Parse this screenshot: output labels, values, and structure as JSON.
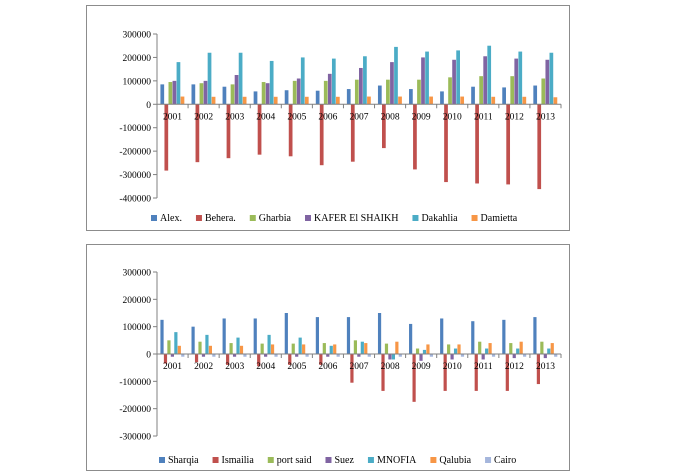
{
  "chart_data": [
    {
      "type": "bar",
      "title": "",
      "xlabel": "",
      "ylabel": "",
      "ylim": [
        -400000,
        300000
      ],
      "yticks": [
        300000,
        200000,
        100000,
        0,
        -100000,
        -200000,
        -300000,
        -400000
      ],
      "grid": false,
      "legend": "bottom",
      "categories": [
        "2001",
        "2002",
        "2003",
        "2004",
        "2005",
        "2006",
        "2007",
        "2008",
        "2009",
        "2010",
        "2011",
        "2012",
        "2013"
      ],
      "series": [
        {
          "name": "Alex.",
          "color": "#4f81bd",
          "values": [
            85000,
            85000,
            75000,
            55000,
            60000,
            58000,
            65000,
            80000,
            65000,
            55000,
            75000,
            72000,
            80000
          ]
        },
        {
          "name": "Behera.",
          "color": "#c0504d",
          "values": [
            -283000,
            -247000,
            -230000,
            -215000,
            -222000,
            -260000,
            -245000,
            -187000,
            -278000,
            -332000,
            -338000,
            -342000,
            -362000
          ]
        },
        {
          "name": "Gharbia",
          "color": "#9bbb59",
          "values": [
            95000,
            90000,
            85000,
            95000,
            100000,
            100000,
            105000,
            105000,
            105000,
            115000,
            120000,
            120000,
            110000
          ]
        },
        {
          "name": "KAFER  El SHAIKH",
          "color": "#8064a2",
          "values": [
            100000,
            100000,
            125000,
            90000,
            110000,
            130000,
            155000,
            180000,
            200000,
            190000,
            205000,
            195000,
            190000
          ]
        },
        {
          "name": "Dakahlia",
          "color": "#4bacc6",
          "values": [
            180000,
            220000,
            220000,
            185000,
            200000,
            195000,
            205000,
            245000,
            225000,
            230000,
            250000,
            225000,
            220000
          ]
        },
        {
          "name": "Damietta",
          "color": "#f79646",
          "values": [
            33000,
            32000,
            32000,
            32000,
            32000,
            32000,
            33000,
            33000,
            33000,
            33000,
            32000,
            32000,
            30000
          ]
        }
      ]
    },
    {
      "type": "bar",
      "title": "",
      "xlabel": "",
      "ylabel": "",
      "ylim": [
        -300000,
        300000
      ],
      "yticks": [
        300000,
        200000,
        100000,
        0,
        -100000,
        -200000,
        -300000
      ],
      "grid": false,
      "legend": "bottom",
      "categories": [
        "2001",
        "2002",
        "2003",
        "2004",
        "2005",
        "2006",
        "2007",
        "2008",
        "2009",
        "2010",
        "2011",
        "2012",
        "2013"
      ],
      "series": [
        {
          "name": "Sharqia",
          "color": "#4f81bd",
          "values": [
            125000,
            100000,
            130000,
            130000,
            150000,
            135000,
            135000,
            150000,
            110000,
            130000,
            120000,
            125000,
            135000
          ]
        },
        {
          "name": "Ismailia",
          "color": "#c0504d",
          "values": [
            -35000,
            -30000,
            -40000,
            -45000,
            -40000,
            -40000,
            -105000,
            -135000,
            -175000,
            -135000,
            -135000,
            -135000,
            -110000
          ]
        },
        {
          "name": "port said",
          "color": "#9bbb59",
          "values": [
            50000,
            45000,
            40000,
            38000,
            38000,
            40000,
            50000,
            38000,
            20000,
            35000,
            45000,
            40000,
            45000
          ]
        },
        {
          "name": "Suez",
          "color": "#8064a2",
          "values": [
            -10000,
            -10000,
            -10000,
            -10000,
            -10000,
            -10000,
            -10000,
            -20000,
            -25000,
            -20000,
            -20000,
            -15000,
            -15000
          ]
        },
        {
          "name": "MNOFIA",
          "color": "#4bacc6",
          "values": [
            80000,
            70000,
            60000,
            70000,
            60000,
            30000,
            45000,
            -20000,
            15000,
            20000,
            20000,
            20000,
            20000
          ]
        },
        {
          "name": "Qalubia",
          "color": "#f79646",
          "values": [
            30000,
            30000,
            30000,
            35000,
            35000,
            35000,
            40000,
            45000,
            35000,
            35000,
            40000,
            45000,
            40000
          ]
        },
        {
          "name": "Cairo",
          "color": "#a5b6dc",
          "values": [
            -10000,
            -10000,
            -10000,
            -10000,
            -10000,
            -10000,
            -10000,
            -10000,
            -10000,
            -10000,
            -10000,
            -10000,
            -10000
          ]
        }
      ]
    }
  ]
}
